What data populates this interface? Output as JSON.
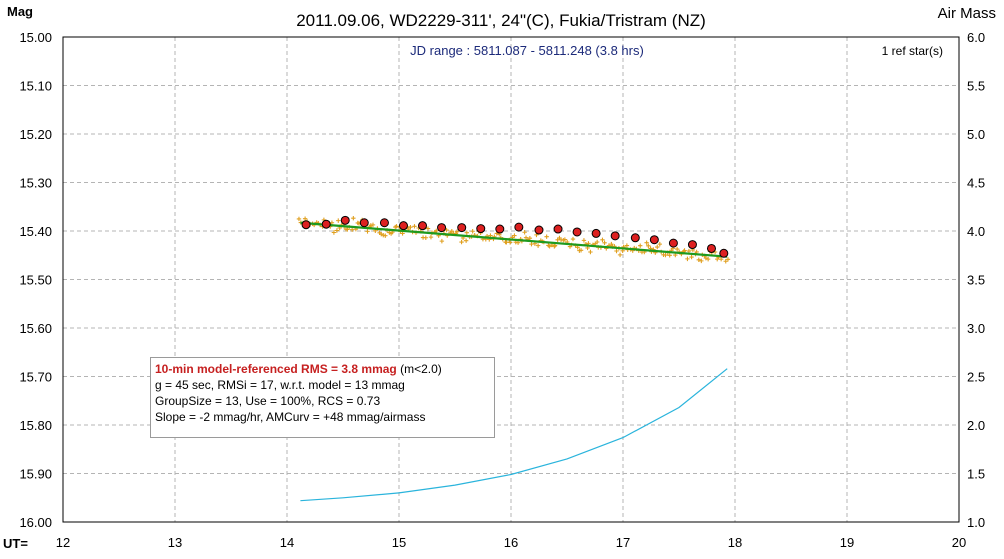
{
  "chart_data": {
    "type": "scatter",
    "title": "2011.09.06, WD2229-311', 24\"(C), Fukia/Tristram (NZ)",
    "left_axis_label": "Mag",
    "right_axis_label": "Air Mass",
    "x_axis_prefix": "UT=",
    "jd_range_text": "JD range : 5811.087 - 5811.248 (3.8 hrs)",
    "ref_stars_text": "1 ref star(s)",
    "xlim": [
      12,
      20
    ],
    "ylim_mag": [
      15.0,
      16.0
    ],
    "ylim_airmass": [
      1.0,
      6.0
    ],
    "grid": true,
    "x_ticks": [
      "12",
      "13",
      "14",
      "15",
      "16",
      "17",
      "18",
      "19",
      "20"
    ],
    "y_ticks_left": [
      "15.00",
      "15.10",
      "15.20",
      "15.30",
      "15.40",
      "15.50",
      "15.60",
      "15.70",
      "15.80",
      "15.90",
      "16.00"
    ],
    "y_ticks_right": [
      "6.0",
      "5.5",
      "5.0",
      "4.5",
      "4.0",
      "3.5",
      "3.0",
      "2.5",
      "2.0",
      "1.5",
      "1.0"
    ],
    "binned_points": [
      {
        "x": 14.17,
        "y": 15.387
      },
      {
        "x": 14.35,
        "y": 15.386
      },
      {
        "x": 14.52,
        "y": 15.378
      },
      {
        "x": 14.69,
        "y": 15.383
      },
      {
        "x": 14.87,
        "y": 15.383
      },
      {
        "x": 15.04,
        "y": 15.389
      },
      {
        "x": 15.21,
        "y": 15.389
      },
      {
        "x": 15.38,
        "y": 15.393
      },
      {
        "x": 15.56,
        "y": 15.393
      },
      {
        "x": 15.73,
        "y": 15.395
      },
      {
        "x": 15.9,
        "y": 15.396
      },
      {
        "x": 16.07,
        "y": 15.392
      },
      {
        "x": 16.25,
        "y": 15.398
      },
      {
        "x": 16.42,
        "y": 15.396
      },
      {
        "x": 16.59,
        "y": 15.402
      },
      {
        "x": 16.76,
        "y": 15.405
      },
      {
        "x": 16.93,
        "y": 15.41
      },
      {
        "x": 17.11,
        "y": 15.414
      },
      {
        "x": 17.28,
        "y": 15.418
      },
      {
        "x": 17.45,
        "y": 15.425
      },
      {
        "x": 17.62,
        "y": 15.428
      },
      {
        "x": 17.79,
        "y": 15.436
      },
      {
        "x": 17.9,
        "y": 15.446
      }
    ],
    "model_line": [
      {
        "x": 14.12,
        "y": 15.383
      },
      {
        "x": 17.93,
        "y": 15.453
      }
    ],
    "airmass_curve": [
      {
        "x": 14.12,
        "am": 1.22
      },
      {
        "x": 14.5,
        "am": 1.25
      },
      {
        "x": 15.0,
        "am": 1.3
      },
      {
        "x": 15.5,
        "am": 1.38
      },
      {
        "x": 16.0,
        "am": 1.49
      },
      {
        "x": 16.5,
        "am": 1.65
      },
      {
        "x": 17.0,
        "am": 1.87
      },
      {
        "x": 17.5,
        "am": 2.18
      },
      {
        "x": 17.93,
        "am": 2.58
      }
    ],
    "raw_scatter_range": {
      "x": [
        14.1,
        17.95
      ],
      "mag_spread": 0.02
    },
    "colors": {
      "grid": "#b4b4b4",
      "raw_points": "#e0a020",
      "binned_fill": "#dd2020",
      "model_line": "#1e9a1e",
      "airmass_curve": "#2ab4dc",
      "title": "#000000",
      "jd_text": "#1c2a7a"
    }
  },
  "stats_box": {
    "line1_highlight": "10-min model-referenced RMS = 3.8 mmag",
    "line1_rest": " (m<2.0)",
    "line2": "g = 45 sec, RMSi = 17, w.r.t. model = 13 mmag",
    "line3": "GroupSize = 13, Use = 100%, RCS = 0.73",
    "line4": "Slope = -2 mmag/hr, AMCurv = +48 mmag/airmass"
  }
}
